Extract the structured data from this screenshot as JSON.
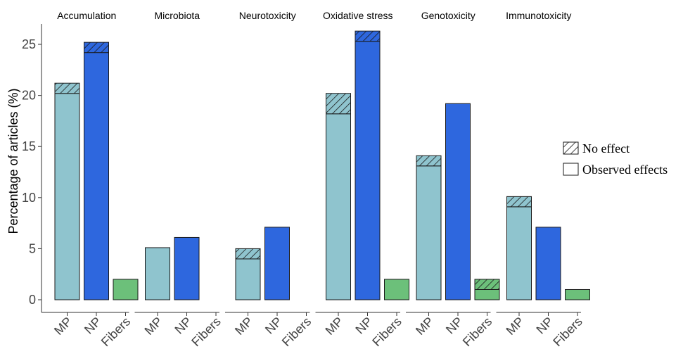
{
  "chart_data": {
    "type": "bar",
    "stacked": true,
    "ylabel": "Percentage of articles (%)",
    "xlabel": "",
    "ylim": [
      0,
      27
    ],
    "yticks": [
      0,
      5,
      10,
      15,
      20,
      25
    ],
    "grid": false,
    "legend_position": "right",
    "legend": [
      {
        "key": "no_effect",
        "label": "No effect",
        "pattern": "hatched"
      },
      {
        "key": "observed",
        "label": "Observed effects",
        "pattern": "solid"
      }
    ],
    "categories": [
      "MP",
      "NP",
      "Fibers"
    ],
    "colors": {
      "MP": "#8fc4ce",
      "NP": "#2e67de",
      "Fibers": "#6cc07a",
      "outline": "#1a1a1a"
    },
    "panels": [
      {
        "title": "Accumulation",
        "bars": [
          {
            "category": "MP",
            "observed": 20.2,
            "no_effect": 1.0
          },
          {
            "category": "NP",
            "observed": 24.2,
            "no_effect": 1.0
          },
          {
            "category": "Fibers",
            "observed": 2.0,
            "no_effect": 0
          }
        ]
      },
      {
        "title": "Microbiota",
        "bars": [
          {
            "category": "MP",
            "observed": 5.1,
            "no_effect": 0
          },
          {
            "category": "NP",
            "observed": 6.1,
            "no_effect": 0
          },
          {
            "category": "Fibers",
            "observed": 0,
            "no_effect": 0
          }
        ]
      },
      {
        "title": "Neurotoxicity",
        "bars": [
          {
            "category": "MP",
            "observed": 4.0,
            "no_effect": 1.0
          },
          {
            "category": "NP",
            "observed": 7.1,
            "no_effect": 0
          },
          {
            "category": "Fibers",
            "observed": 0,
            "no_effect": 0
          }
        ]
      },
      {
        "title": "Oxidative  stress",
        "bars": [
          {
            "category": "MP",
            "observed": 18.2,
            "no_effect": 2.0
          },
          {
            "category": "NP",
            "observed": 25.3,
            "no_effect": 1.0
          },
          {
            "category": "Fibers",
            "observed": 2.0,
            "no_effect": 0
          }
        ]
      },
      {
        "title": "Genotoxicity",
        "bars": [
          {
            "category": "MP",
            "observed": 13.1,
            "no_effect": 1.0
          },
          {
            "category": "NP",
            "observed": 19.2,
            "no_effect": 0
          },
          {
            "category": "Fibers",
            "observed": 1.0,
            "no_effect": 1.0
          }
        ]
      },
      {
        "title": "Immunotoxicity",
        "bars": [
          {
            "category": "MP",
            "observed": 9.1,
            "no_effect": 1.0
          },
          {
            "category": "NP",
            "observed": 7.1,
            "no_effect": 0
          },
          {
            "category": "Fibers",
            "observed": 1.0,
            "no_effect": 0
          }
        ]
      }
    ]
  }
}
